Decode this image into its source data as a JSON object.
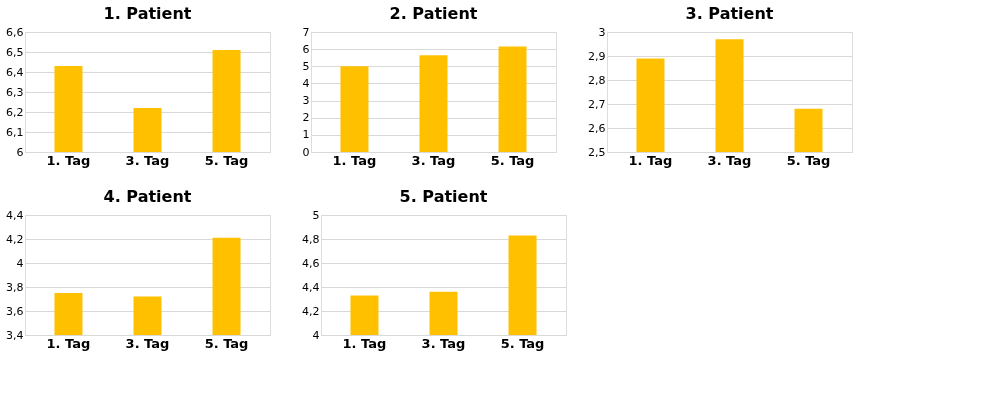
{
  "chart_data": [
    {
      "type": "bar",
      "title": "1. Patient",
      "categories": [
        "1. Tag",
        "3. Tag",
        "5. Tag"
      ],
      "values": [
        6.43,
        6.22,
        6.51
      ],
      "color": "#ffc000",
      "ylim": [
        6,
        6.6
      ],
      "yticks": [
        6,
        {
          "value": 6.1,
          "label": "6,1"
        },
        {
          "value": 6.2,
          "label": "6,2"
        },
        {
          "value": 6.3,
          "label": "6,3"
        },
        {
          "value": 6.4,
          "label": "6,4"
        },
        {
          "value": 6.5,
          "label": "6,5"
        },
        {
          "value": 6.6,
          "label": "6,6"
        }
      ],
      "grid": "y"
    },
    {
      "type": "bar",
      "title": "2. Patient",
      "categories": [
        "1. Tag",
        "3. Tag",
        "5. Tag"
      ],
      "values": [
        5.0,
        5.65,
        6.15
      ],
      "color": "#ffc000",
      "ylim": [
        0,
        7
      ],
      "yticks": [
        0,
        1,
        2,
        3,
        4,
        5,
        6,
        7
      ],
      "grid": "y"
    },
    {
      "type": "bar",
      "title": "3. Patient",
      "categories": [
        "1. Tag",
        "3. Tag",
        "5. Tag"
      ],
      "values": [
        2.89,
        2.97,
        2.68
      ],
      "color": "#ffc000",
      "ylim": [
        2.5,
        3
      ],
      "yticks": [
        {
          "value": 2.5,
          "label": "2,5"
        },
        {
          "value": 2.6,
          "label": "2,6"
        },
        {
          "value": 2.7,
          "label": "2,7"
        },
        {
          "value": 2.8,
          "label": "2,8"
        },
        {
          "value": 2.9,
          "label": "2,9"
        },
        3
      ],
      "grid": "y"
    },
    {
      "type": "bar",
      "title": "4. Patient",
      "categories": [
        "1. Tag",
        "3. Tag",
        "5. Tag"
      ],
      "values": [
        3.75,
        3.72,
        4.21
      ],
      "color": "#ffc000",
      "ylim": [
        3.4,
        4.4
      ],
      "yticks": [
        {
          "value": 3.4,
          "label": "3,4"
        },
        {
          "value": 3.6,
          "label": "3,6"
        },
        {
          "value": 3.8,
          "label": "3,8"
        },
        4,
        {
          "value": 4.2,
          "label": "4,2"
        },
        {
          "value": 4.4,
          "label": "4,4"
        }
      ],
      "grid": "y"
    },
    {
      "type": "bar",
      "title": "5. Patient",
      "categories": [
        "1. Tag",
        "3. Tag",
        "5. Tag"
      ],
      "values": [
        4.33,
        4.36,
        4.83
      ],
      "color": "#ffc000",
      "ylim": [
        4,
        5
      ],
      "yticks": [
        4,
        {
          "value": 4.2,
          "label": "4,2"
        },
        {
          "value": 4.4,
          "label": "4,4"
        },
        {
          "value": 4.6,
          "label": "4,6"
        },
        {
          "value": 4.8,
          "label": "4,8"
        },
        5
      ],
      "grid": "y"
    }
  ]
}
